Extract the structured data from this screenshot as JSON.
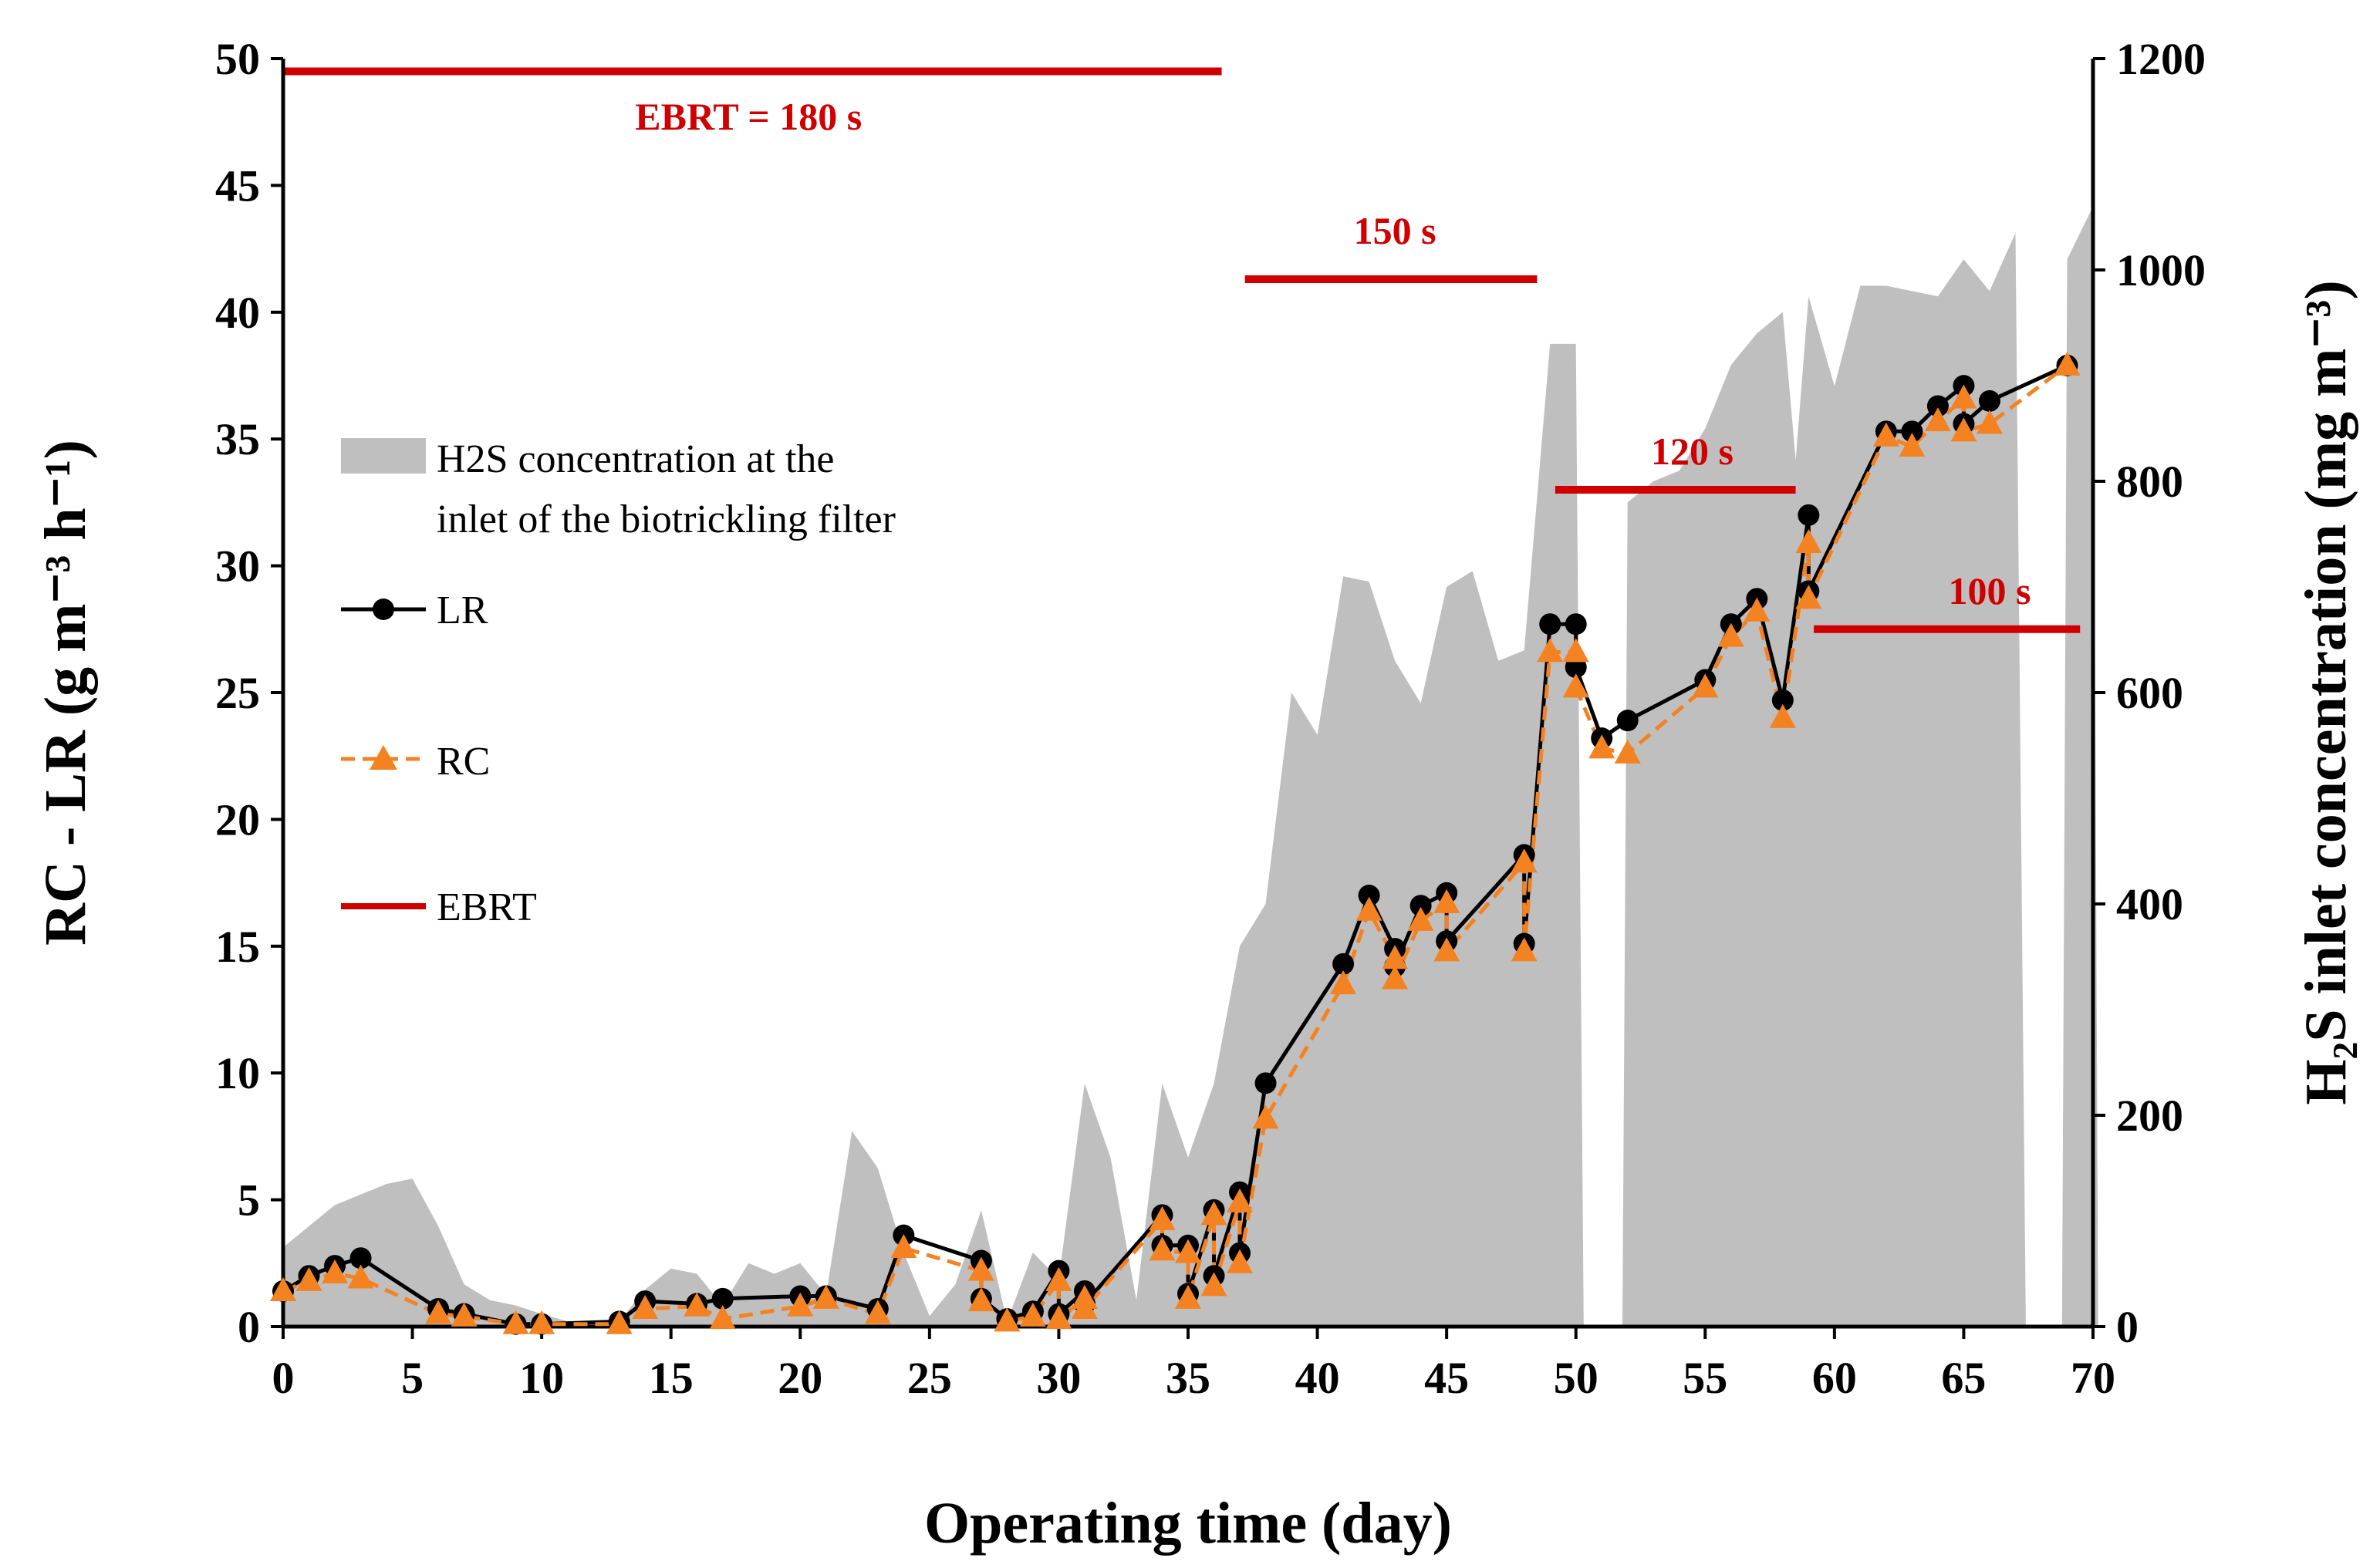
{
  "chart_data": {
    "type": "line",
    "xlabel": "Operating time (day)",
    "ylabel_left": "RC - LR  (g m⁻³ h⁻¹)",
    "ylabel_right": "H₂S inlet concentration (mg m⁻³)",
    "xlim": [
      0,
      70
    ],
    "ylim_left": [
      0,
      50
    ],
    "ylim_right": [
      0,
      1200
    ],
    "x_ticks": [
      0,
      5,
      10,
      15,
      20,
      25,
      30,
      35,
      40,
      45,
      50,
      55,
      60,
      65,
      70
    ],
    "y_left_ticks": [
      0,
      5,
      10,
      15,
      20,
      25,
      30,
      35,
      40,
      45,
      50
    ],
    "y_right_ticks": [
      0,
      200,
      400,
      600,
      800,
      1000,
      1200
    ],
    "legend": {
      "position": "center-left",
      "entries": [
        {
          "key": "area",
          "label": "H2S concentration at the inlet of the biotrickling filter"
        },
        {
          "key": "LR",
          "label": "LR"
        },
        {
          "key": "RC",
          "label": "RC"
        },
        {
          "key": "EBRT",
          "label": "EBRT"
        }
      ]
    },
    "series": [
      {
        "name": "H2S concentration at the inlet of the biotrickling filter",
        "axis": "right",
        "kind": "area",
        "color": "#bfbfbf",
        "segments": [
          {
            "x": [
              0,
              1,
              2,
              3,
              4,
              5,
              6,
              7,
              8,
              9,
              10,
              11,
              12,
              13,
              14,
              15,
              16,
              17,
              18,
              19,
              20,
              21,
              22,
              23,
              24,
              25,
              26,
              27,
              28,
              29,
              30,
              31,
              32,
              33,
              34,
              35,
              36,
              37,
              38,
              39,
              40,
              41,
              42,
              43,
              44,
              45,
              46,
              47,
              48,
              49,
              50,
              50.3
            ],
            "y": [
              75,
              95,
              115,
              125,
              135,
              140,
              95,
              40,
              25,
              20,
              12,
              5,
              5,
              5,
              35,
              55,
              50,
              20,
              60,
              50,
              60,
              30,
              185,
              150,
              70,
              10,
              40,
              110,
              5,
              70,
              45,
              230,
              160,
              25,
              230,
              160,
              230,
              360,
              400,
              600,
              560,
              710,
              705,
              630,
              590,
              700,
              715,
              630,
              640,
              930,
              930,
              0
            ]
          },
          {
            "x": [
              51.8,
              52,
              53,
              54,
              55,
              56,
              57,
              58,
              58.5,
              59,
              60,
              61,
              62,
              63,
              64,
              65,
              66,
              67,
              67.4
            ],
            "y": [
              0,
              780,
              800,
              810,
              850,
              910,
              940,
              960,
              820,
              975,
              890,
              985,
              985,
              980,
              975,
              1010,
              980,
              1035,
              0
            ]
          },
          {
            "x": [
              68.8,
              69,
              70,
              70.2
            ],
            "y": [
              0,
              1010,
              1060,
              0
            ]
          }
        ]
      },
      {
        "name": "LR",
        "axis": "left",
        "kind": "line-marker",
        "color": "#000000",
        "x": [
          0,
          1,
          2,
          3,
          6,
          7,
          9,
          10,
          13,
          14,
          16,
          17,
          20,
          21,
          23,
          24,
          27,
          27,
          28,
          29,
          30,
          30,
          31,
          31,
          34,
          34,
          35,
          35,
          36,
          36,
          37,
          37,
          38,
          41,
          42,
          43,
          43,
          44,
          45,
          45,
          48,
          48,
          49,
          50,
          50,
          51,
          52,
          55,
          56,
          57,
          58,
          59,
          59,
          62,
          63,
          64,
          65,
          65,
          66,
          69
        ],
        "y": [
          1.4,
          2.0,
          2.4,
          2.7,
          0.7,
          0.5,
          0.1,
          0.1,
          0.2,
          1.0,
          0.9,
          1.1,
          1.2,
          1.2,
          0.7,
          3.6,
          2.6,
          1.1,
          0.3,
          0.6,
          2.2,
          0.5,
          1.4,
          0.9,
          4.4,
          3.2,
          3.2,
          1.3,
          4.6,
          2.0,
          5.3,
          2.9,
          9.6,
          14.3,
          17.0,
          14.9,
          14.2,
          16.6,
          17.1,
          15.2,
          18.6,
          15.1,
          27.7,
          27.7,
          26.0,
          23.2,
          23.9,
          25.5,
          27.7,
          28.7,
          24.7,
          32.0,
          29.0,
          35.3,
          35.3,
          36.3,
          37.1,
          35.6,
          36.5,
          37.9
        ]
      },
      {
        "name": "RC",
        "axis": "left",
        "kind": "dashed-marker",
        "color": "#f58220",
        "x": [
          0,
          1,
          2,
          3,
          6,
          7,
          9,
          10,
          13,
          14,
          16,
          17,
          20,
          21,
          23,
          24,
          27,
          27,
          28,
          29,
          30,
          30,
          31,
          31,
          34,
          34,
          35,
          35,
          36,
          36,
          37,
          37,
          38,
          41,
          42,
          43,
          43,
          44,
          45,
          45,
          48,
          48,
          49,
          50,
          50,
          51,
          52,
          55,
          56,
          57,
          58,
          59,
          59,
          62,
          63,
          64,
          65,
          65,
          66,
          69
        ],
        "y": [
          1.4,
          1.8,
          2.1,
          1.9,
          0.5,
          0.4,
          0.1,
          0.1,
          0.1,
          0.7,
          0.8,
          0.3,
          0.8,
          1.1,
          0.5,
          3.1,
          2.2,
          1.0,
          0.2,
          0.4,
          1.8,
          0.3,
          1.1,
          0.7,
          4.2,
          3.0,
          2.9,
          1.1,
          4.4,
          1.6,
          4.9,
          2.5,
          8.2,
          13.5,
          16.4,
          14.5,
          13.7,
          16.0,
          16.7,
          14.8,
          18.3,
          14.8,
          26.6,
          26.6,
          25.2,
          22.8,
          22.6,
          25.2,
          27.2,
          28.2,
          24.0,
          30.9,
          28.7,
          35.1,
          34.7,
          35.7,
          36.6,
          35.3,
          35.6,
          37.9
        ]
      },
      {
        "name": "EBRT",
        "axis": "left",
        "kind": "segments",
        "color": "#d00000",
        "segments": [
          {
            "x0": 0,
            "x1": 36.3,
            "y": 49.5,
            "label": "EBRT = 180 s",
            "label_x": 18,
            "label_y": 47.2
          },
          {
            "x0": 37.2,
            "x1": 48.5,
            "y": 41.3,
            "label": "150 s",
            "label_x": 43,
            "label_y": 42.7
          },
          {
            "x0": 49.2,
            "x1": 58.5,
            "y": 33.0,
            "label": "120 s",
            "label_x": 54.5,
            "label_y": 34.0
          },
          {
            "x0": 59.2,
            "x1": 69.5,
            "y": 27.5,
            "label": "100 s",
            "label_x": 66,
            "label_y": 28.5
          }
        ]
      }
    ]
  }
}
